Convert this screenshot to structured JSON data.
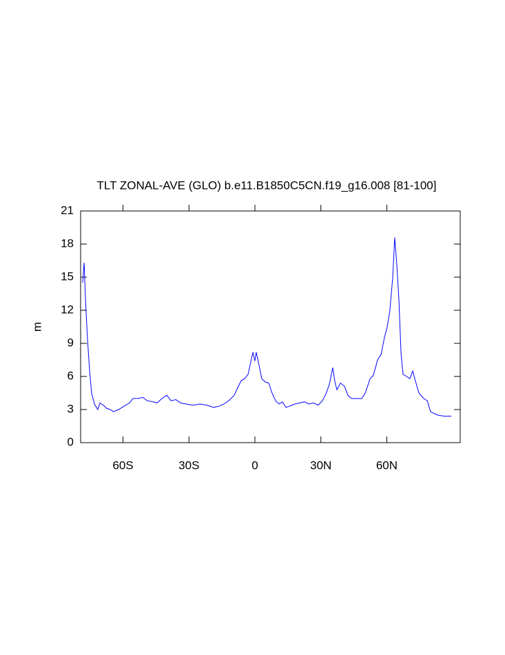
{
  "chart_data": {
    "type": "line",
    "title": "TLT ZONAL-AVE (GLO) b.e11.B1850C5CN.f19_g16.008 [81-100]",
    "ylabel": "m",
    "xlim": [
      -79.3,
      93.4
    ],
    "ylim": [
      0,
      21
    ],
    "xticks": [
      {
        "value": -60,
        "label": "60S"
      },
      {
        "value": -30,
        "label": "30S"
      },
      {
        "value": 0,
        "label": "0"
      },
      {
        "value": 30,
        "label": "30N"
      },
      {
        "value": 60,
        "label": "60N"
      }
    ],
    "yticks": [
      0,
      3,
      6,
      9,
      12,
      15,
      18,
      21
    ],
    "series": [
      {
        "color": "#0000ff",
        "x": [
          -78.4,
          -77.7,
          -77.1,
          -76.2,
          -75.2,
          -74.3,
          -73,
          -71.5,
          -70.5,
          -69,
          -67.4,
          -65.8,
          -64.3,
          -62,
          -59.6,
          -57,
          -55.5,
          -53.3,
          -51,
          -49,
          -46.4,
          -44.5,
          -42.3,
          -40.1,
          -38.2,
          -36,
          -33.9,
          -31.3,
          -28.2,
          -25.1,
          -21.9,
          -18.8,
          -16.3,
          -14.1,
          -11.9,
          -9.4,
          -7.8,
          -6.3,
          -4.7,
          -3.1,
          -1.9,
          -0.9,
          0,
          0.6,
          1.9,
          3.1,
          4.7,
          6.3,
          7.8,
          9.4,
          11,
          12.5,
          14.1,
          15.7,
          18.2,
          20.4,
          22.6,
          24.5,
          26.6,
          28.8,
          30.7,
          32.3,
          33.9,
          35.4,
          36.4,
          37.3,
          38.9,
          40.8,
          42.3,
          43.9,
          46.4,
          48.6,
          50.2,
          52.4,
          53.9,
          55.8,
          57.4,
          58.9,
          60.2,
          61.4,
          62.7,
          63.6,
          64.6,
          65.5,
          66.5,
          67.4,
          69,
          70.5,
          71.8,
          73,
          74.6,
          76.8,
          78.4,
          79.9,
          83.1,
          86.2,
          89.3
        ],
        "values": [
          14.5,
          16.3,
          13,
          9.5,
          6.5,
          4.5,
          3.5,
          3.0,
          3.6,
          3.4,
          3.1,
          3.0,
          2.8,
          3.0,
          3.3,
          3.6,
          4.0,
          4.0,
          4.1,
          3.8,
          3.7,
          3.6,
          4.0,
          4.3,
          3.8,
          3.9,
          3.6,
          3.5,
          3.4,
          3.5,
          3.4,
          3.2,
          3.3,
          3.5,
          3.8,
          4.3,
          5.0,
          5.6,
          5.8,
          6.2,
          7.3,
          8.2,
          7.4,
          8.2,
          7.0,
          5.8,
          5.5,
          5.4,
          4.5,
          3.8,
          3.5,
          3.7,
          3.2,
          3.3,
          3.5,
          3.6,
          3.7,
          3.5,
          3.6,
          3.4,
          3.8,
          4.4,
          5.3,
          6.8,
          5.5,
          4.8,
          5.4,
          5.1,
          4.3,
          4.0,
          4.0,
          4.0,
          4.5,
          5.8,
          6.1,
          7.5,
          8.0,
          9.5,
          10.5,
          12,
          15,
          18.6,
          16,
          13,
          8,
          6.2,
          6.0,
          5.8,
          6.5,
          5.6,
          4.5,
          4.0,
          3.8,
          2.8,
          2.5,
          2.4,
          2.4
        ]
      }
    ]
  }
}
